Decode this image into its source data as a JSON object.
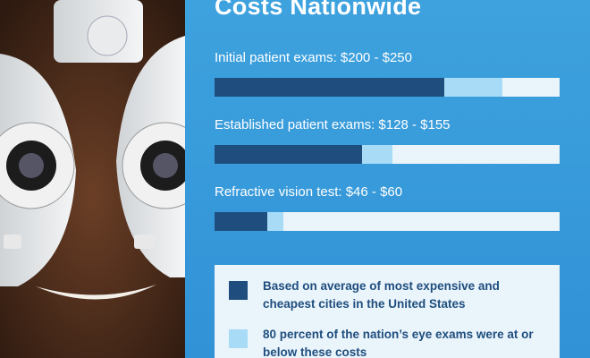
{
  "chart_data": {
    "type": "range-bar",
    "title": "Costs Nationwide",
    "categories": [
      "Initial patient exams: $200 - $250",
      "Established patient exams: $128 - $155",
      "Refractive vision test: $46 - $60"
    ],
    "xlim": [
      0,
      300
    ],
    "track_color": "#eaf4fb",
    "series": [
      {
        "name": "Based on average of most expensive and cheapest cities in the United States",
        "color": "#1f4e7e",
        "values": [
          200,
          128,
          46
        ]
      },
      {
        "name": "80 percent of the nation’s eye exams were at or below these costs",
        "color": "#a8dcf6",
        "values": [
          250,
          155,
          60
        ]
      }
    ]
  }
}
